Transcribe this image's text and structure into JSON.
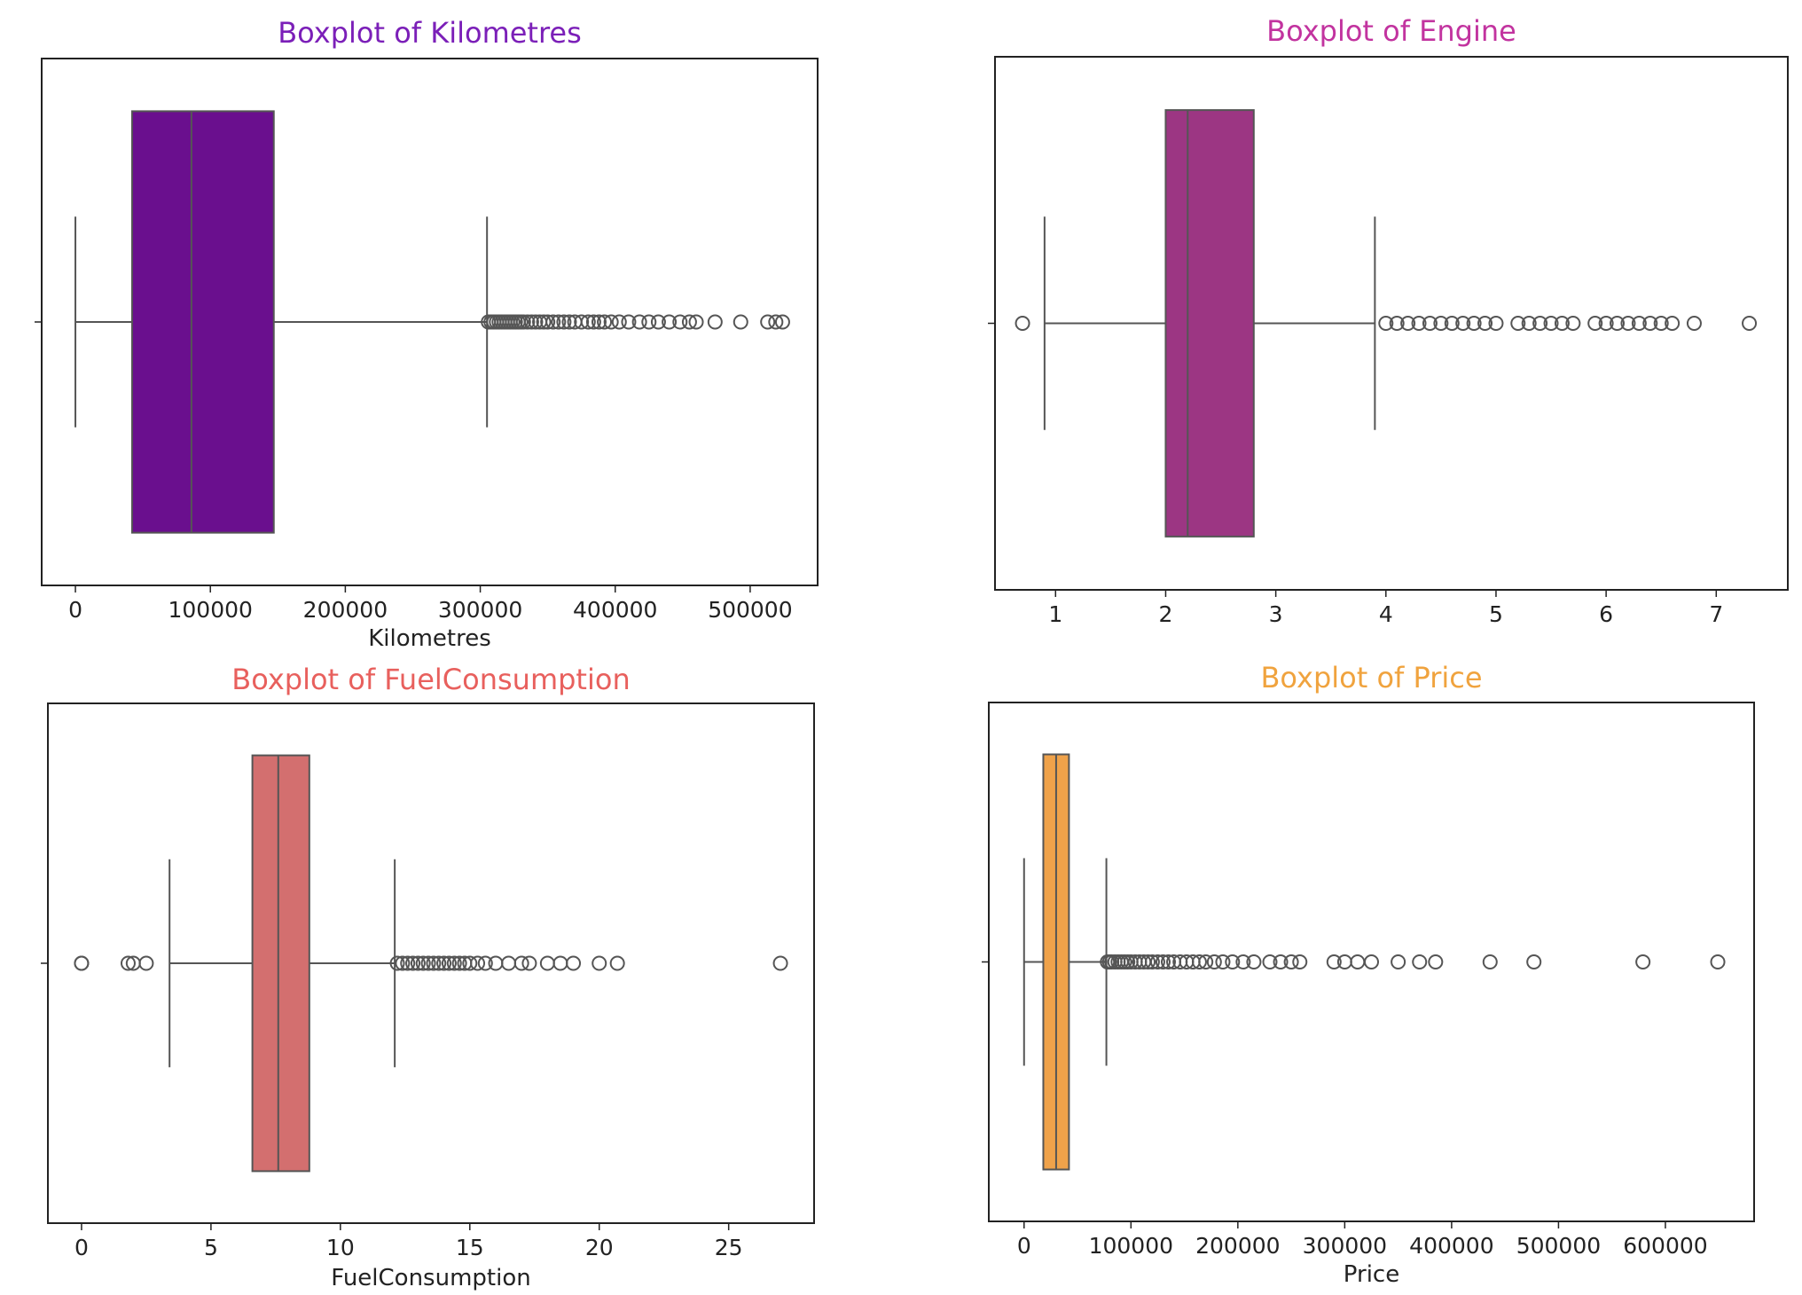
{
  "chart_data": [
    {
      "type": "boxplot",
      "title": "Boxplot of Kilometres",
      "title_color": "#7b1fb8",
      "box_color": "#6a0f8e",
      "xlabel": "Kilometres",
      "xlim": [
        -25000,
        550000
      ],
      "xticks": [
        0,
        100000,
        200000,
        300000,
        400000,
        500000
      ],
      "whisker_low": 0,
      "q1": 42000,
      "median": 86000,
      "q3": 147000,
      "whisker_high": 305000,
      "outliers": [
        306000,
        308000,
        310000,
        312000,
        314000,
        316000,
        318000,
        320000,
        322000,
        324000,
        326000,
        328000,
        330000,
        332000,
        335000,
        338000,
        341000,
        344000,
        347000,
        350000,
        354000,
        358000,
        362000,
        366000,
        370000,
        375000,
        380000,
        384000,
        388000,
        392000,
        397000,
        403000,
        410000,
        418000,
        425000,
        432000,
        440000,
        448000,
        455000,
        460000,
        474000,
        493000,
        513000,
        519000,
        524000
      ]
    },
    {
      "type": "boxplot",
      "title": "Boxplot of Engine",
      "title_color": "#c2339f",
      "box_color": "#9c3683",
      "xlabel": "",
      "xlim": [
        0.45,
        7.65
      ],
      "xticks": [
        1,
        2,
        3,
        4,
        5,
        6,
        7
      ],
      "whisker_low": 0.9,
      "q1": 2.0,
      "median": 2.2,
      "q3": 2.8,
      "whisker_high": 3.9,
      "outliers": [
        0.7,
        4.0,
        4.1,
        4.2,
        4.3,
        4.4,
        4.5,
        4.6,
        4.7,
        4.8,
        4.9,
        5.0,
        5.2,
        5.3,
        5.4,
        5.5,
        5.6,
        5.7,
        5.9,
        6.0,
        6.1,
        6.2,
        6.3,
        6.4,
        6.5,
        6.6,
        6.8,
        7.3
      ]
    },
    {
      "type": "boxplot",
      "title": "Boxplot of FuelConsumption",
      "title_color": "#e8605d",
      "box_color": "#d36f6f",
      "xlabel": "FuelConsumption",
      "xlim": [
        -1.3,
        28.3
      ],
      "xticks": [
        0,
        5,
        10,
        15,
        20,
        25
      ],
      "whisker_low": 3.4,
      "q1": 6.6,
      "median": 7.6,
      "q3": 8.8,
      "whisker_high": 12.1,
      "outliers": [
        0,
        0,
        1.8,
        2.0,
        2.5,
        12.2,
        12.4,
        12.6,
        12.8,
        13.0,
        13.2,
        13.4,
        13.6,
        13.8,
        14.0,
        14.2,
        14.4,
        14.6,
        14.8,
        15.0,
        15.3,
        15.6,
        16.0,
        16.5,
        17.0,
        17.3,
        18.0,
        18.5,
        19.0,
        20.0,
        20.7,
        27.0
      ]
    },
    {
      "type": "boxplot",
      "title": "Boxplot of Price",
      "title_color": "#f0a33e",
      "box_color": "#efa24a",
      "xlabel": "Price",
      "xlim": [
        -33000,
        683000
      ],
      "xticks": [
        0,
        100000,
        200000,
        300000,
        400000,
        500000,
        600000
      ],
      "whisker_low": 0,
      "q1": 18000,
      "median": 30000,
      "q3": 42000,
      "whisker_high": 77000,
      "outliers": [
        78000,
        80000,
        82000,
        85000,
        88000,
        91000,
        94000,
        97000,
        100000,
        104000,
        108000,
        112000,
        116000,
        120000,
        125000,
        130000,
        135000,
        140000,
        146000,
        152000,
        158000,
        164000,
        170000,
        178000,
        186000,
        195000,
        205000,
        215000,
        230000,
        240000,
        250000,
        258000,
        290000,
        300000,
        312000,
        325000,
        350000,
        370000,
        385000,
        436000,
        477000,
        579000,
        649000
      ]
    }
  ]
}
